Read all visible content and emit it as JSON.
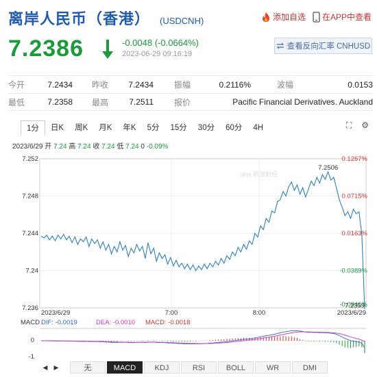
{
  "header": {
    "title": "离岸人民币（香港）",
    "code": "(USDCNH)",
    "add_watch_label": "添加自选",
    "app_label": "在APP中查看"
  },
  "quote": {
    "price": "7.2386",
    "change": "-0.0048 (-0.0664%)",
    "time": "2023-06-29 09:16:19",
    "query_button": "查看反向汇率 CNHUSD",
    "color_down": "#1a9a3a"
  },
  "stats": {
    "rows": [
      [
        [
          "今开",
          "7.2434"
        ],
        [
          "昨收",
          "7.2434"
        ],
        [
          "振幅",
          "0.2116%"
        ],
        [
          "波幅",
          "0.0153"
        ]
      ],
      [
        [
          "最低",
          "7.2358"
        ],
        [
          "最高",
          "7.2511"
        ],
        [
          "报价",
          "Pacific Financial Derivatives. Auckland"
        ]
      ]
    ]
  },
  "tabs": {
    "items": [
      "1分",
      "日K",
      "周K",
      "月K",
      "年K",
      "5分",
      "15分",
      "30分",
      "60分",
      "4H"
    ],
    "active": 0
  },
  "chart_header": {
    "date": "2023/6/29",
    "open_label": "开",
    "open": "7.24",
    "high_label": "高",
    "high": "7.24",
    "close_label": "收",
    "close": "7.24",
    "low_label": "低",
    "low": "7.24",
    "volume": "0",
    "pct": "-0.09%"
  },
  "chart_data": {
    "type": "line",
    "ylim": [
      7.236,
      7.252
    ],
    "y_ticks": [
      "7.252",
      "7.248",
      "7.244",
      "7.24",
      "7.236"
    ],
    "right_ticks": [
      "0.1267%",
      "0.0715%",
      "0.0163%",
      "-0.0389%",
      "-0.0941%"
    ],
    "x_labels": [
      "2023/6/29",
      "7:00",
      "8:00",
      "2023/6/29"
    ],
    "high_annotation": "7.2506",
    "last_annotation": "7.2359",
    "watermark": "sina 新浪财经",
    "series": [
      {
        "values": [
          7.2437,
          7.2435,
          7.2438,
          7.2433,
          7.2437,
          7.2432,
          7.2438,
          7.2434,
          7.2439,
          7.2433,
          7.2437,
          7.243,
          7.2436,
          7.2428,
          7.2434,
          7.2431,
          7.2436,
          7.2426,
          7.2434,
          7.2429,
          7.2433,
          7.2424,
          7.2431,
          7.2422,
          7.2428,
          7.2418,
          7.2426,
          7.242,
          7.2431,
          7.2422,
          7.2427,
          7.2415,
          7.2424,
          7.2419,
          7.2428,
          7.2421,
          7.2426,
          7.2413,
          7.243,
          7.2418,
          7.2424,
          7.241,
          7.2419,
          7.2413,
          7.2417,
          7.2407,
          7.2414,
          7.2405,
          7.2411,
          7.2404,
          7.2408,
          7.2402,
          7.2407,
          7.2401,
          7.2406,
          7.24,
          7.2405,
          7.2401,
          7.2407,
          7.2402,
          7.2408,
          7.2404,
          7.241,
          7.2406,
          7.2413,
          7.2408,
          7.2416,
          7.2412,
          7.242,
          7.2416,
          7.2425,
          7.242,
          7.2428,
          7.2423,
          7.2432,
          7.2428,
          7.244,
          7.2436,
          7.2448,
          7.2444,
          7.2456,
          7.2452,
          7.2464,
          7.2462,
          7.2474,
          7.2476,
          7.2485,
          7.248,
          7.249,
          7.2495,
          7.2486,
          7.2492,
          7.2482,
          7.2489,
          7.2479,
          7.2487,
          7.2496,
          7.2491,
          7.25,
          7.2494,
          7.2503,
          7.2498,
          7.2506,
          7.2497,
          7.25,
          7.2488,
          7.2476,
          7.2468,
          7.2459,
          7.2463,
          7.2456,
          7.2466,
          7.2461,
          7.2463,
          7.2438,
          7.2359
        ]
      }
    ]
  },
  "macd": {
    "label": "MACD",
    "dif": "DIF: -0.0019",
    "dea": "DEA: -0.0010",
    "macd": "MACD: -0.0018",
    "ticks": [
      "0",
      "-1"
    ],
    "color_dif": "#3366cc",
    "color_dea": "#cc33cc",
    "color_macd": "#cc3333"
  },
  "bottom_tabs": {
    "items": [
      "无",
      "MACD",
      "KDJ",
      "RSI",
      "BOLL",
      "WR",
      "DMI"
    ],
    "active": 1
  }
}
